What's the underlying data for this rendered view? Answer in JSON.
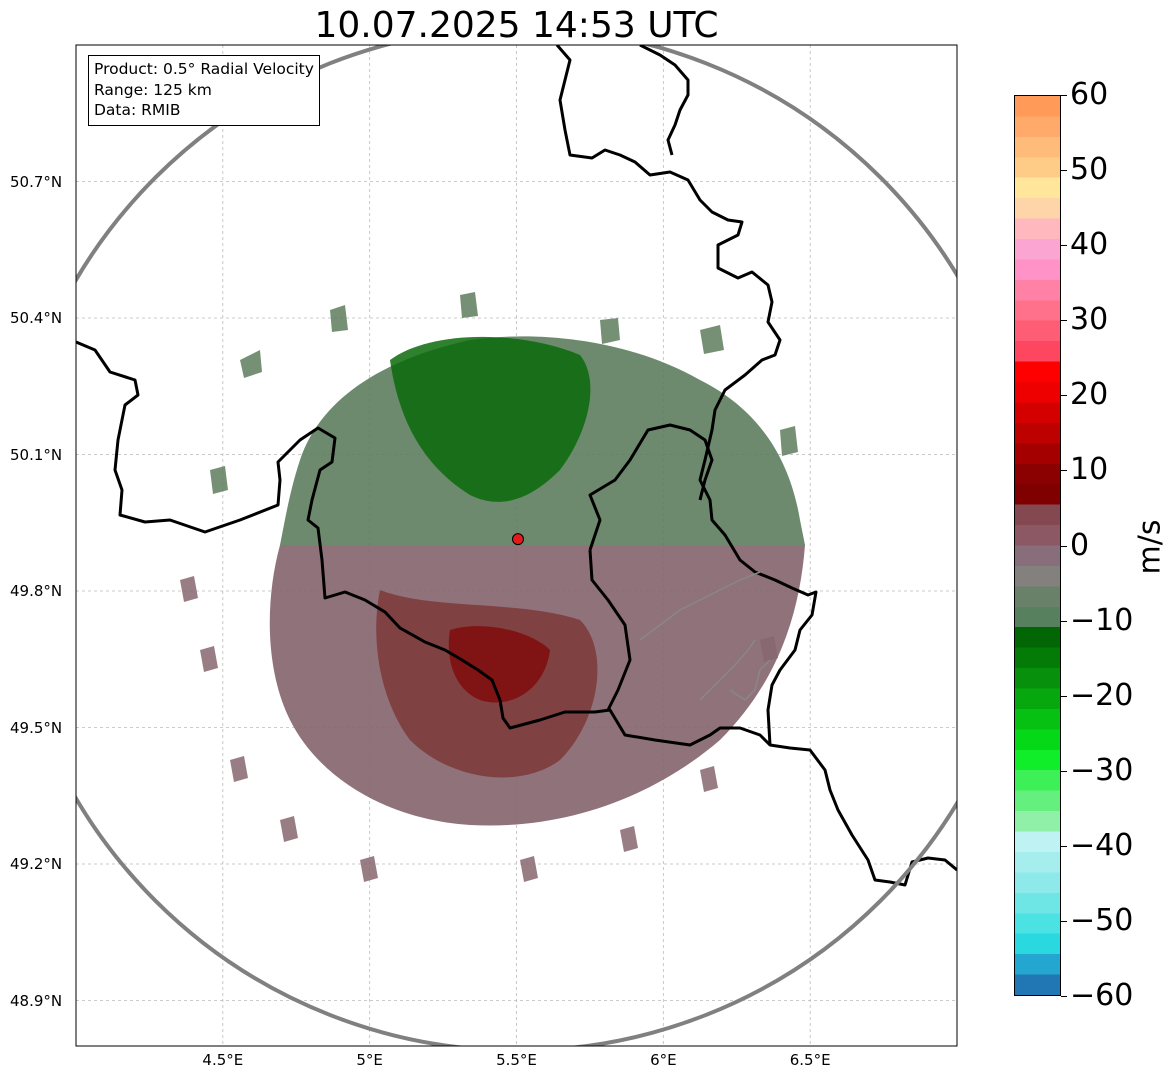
{
  "title": "10.07.2025 14:53 UTC",
  "info_box": {
    "lines": [
      "Product: 0.5° Radial Velocity",
      "Range: 125 km",
      "Data: RMIB"
    ]
  },
  "map": {
    "lat_labels": [
      {
        "value": 50.7,
        "label": "50.7°N"
      },
      {
        "value": 50.4,
        "label": "50.4°N"
      },
      {
        "value": 50.1,
        "label": "50.1°N"
      },
      {
        "value": 49.8,
        "label": "49.8°N"
      },
      {
        "value": 49.5,
        "label": "49.5°N"
      },
      {
        "value": 49.2,
        "label": "49.2°N"
      },
      {
        "value": 48.9,
        "label": "48.9°N"
      }
    ],
    "lon_labels": [
      {
        "value": 4.5,
        "label": "4.5°E"
      },
      {
        "value": 5.0,
        "label": "5°E"
      },
      {
        "value": 5.5,
        "label": "5.5°E"
      },
      {
        "value": 6.0,
        "label": "6°E"
      },
      {
        "value": 6.5,
        "label": "6.5°E"
      }
    ],
    "lon_range": [
      4.0,
      7.0
    ],
    "lat_range": [
      48.8,
      51.0
    ],
    "radar_site": {
      "lon": 5.505,
      "lat": 49.914
    },
    "range_ring_km": 125,
    "grid": true,
    "colors": {
      "range_ring": "#808080",
      "borders": "#000000",
      "grid": "#bbbbbb",
      "radar_site": "#e41a1c"
    }
  },
  "colorbar": {
    "label": "m/s",
    "ticks": [
      {
        "value": 60,
        "label": "60"
      },
      {
        "value": 50,
        "label": "50"
      },
      {
        "value": 40,
        "label": "40"
      },
      {
        "value": 30,
        "label": "30"
      },
      {
        "value": 20,
        "label": "20"
      },
      {
        "value": 10,
        "label": "10"
      },
      {
        "value": 0,
        "label": "0"
      },
      {
        "value": -10,
        "label": "−10"
      },
      {
        "value": -20,
        "label": "−20"
      },
      {
        "value": -30,
        "label": "−30"
      },
      {
        "value": -40,
        "label": "−40"
      },
      {
        "value": -50,
        "label": "−50"
      },
      {
        "value": -60,
        "label": "−60"
      }
    ],
    "min": -60,
    "max": 60,
    "colors": [
      "#2077b4",
      "#23a6cf",
      "#2ad9df",
      "#4ae2e2",
      "#6ee6e6",
      "#8de9ea",
      "#a6eded",
      "#bff2f2",
      "#90f0a8",
      "#64ef7e",
      "#3df058",
      "#10ee2a",
      "#05d817",
      "#06c012",
      "#07a80e",
      "#06900b",
      "#047a07",
      "#036604",
      "#57815e",
      "#6a8169",
      "#84807e",
      "#886e7a",
      "#8b5863",
      "#844950",
      "#800000",
      "#8b0000",
      "#a50000",
      "#bd0000",
      "#d40000",
      "#ee0000",
      "#ff0000",
      "#ff4660",
      "#ff5d75",
      "#ff708b",
      "#ff82a6",
      "#ff92c7",
      "#fba5d3",
      "#ffb8bd",
      "#fed5a8",
      "#ffe69a",
      "#ffcc88",
      "#ffbb7a",
      "#ffaa6a",
      "#ff9a58"
    ]
  }
}
